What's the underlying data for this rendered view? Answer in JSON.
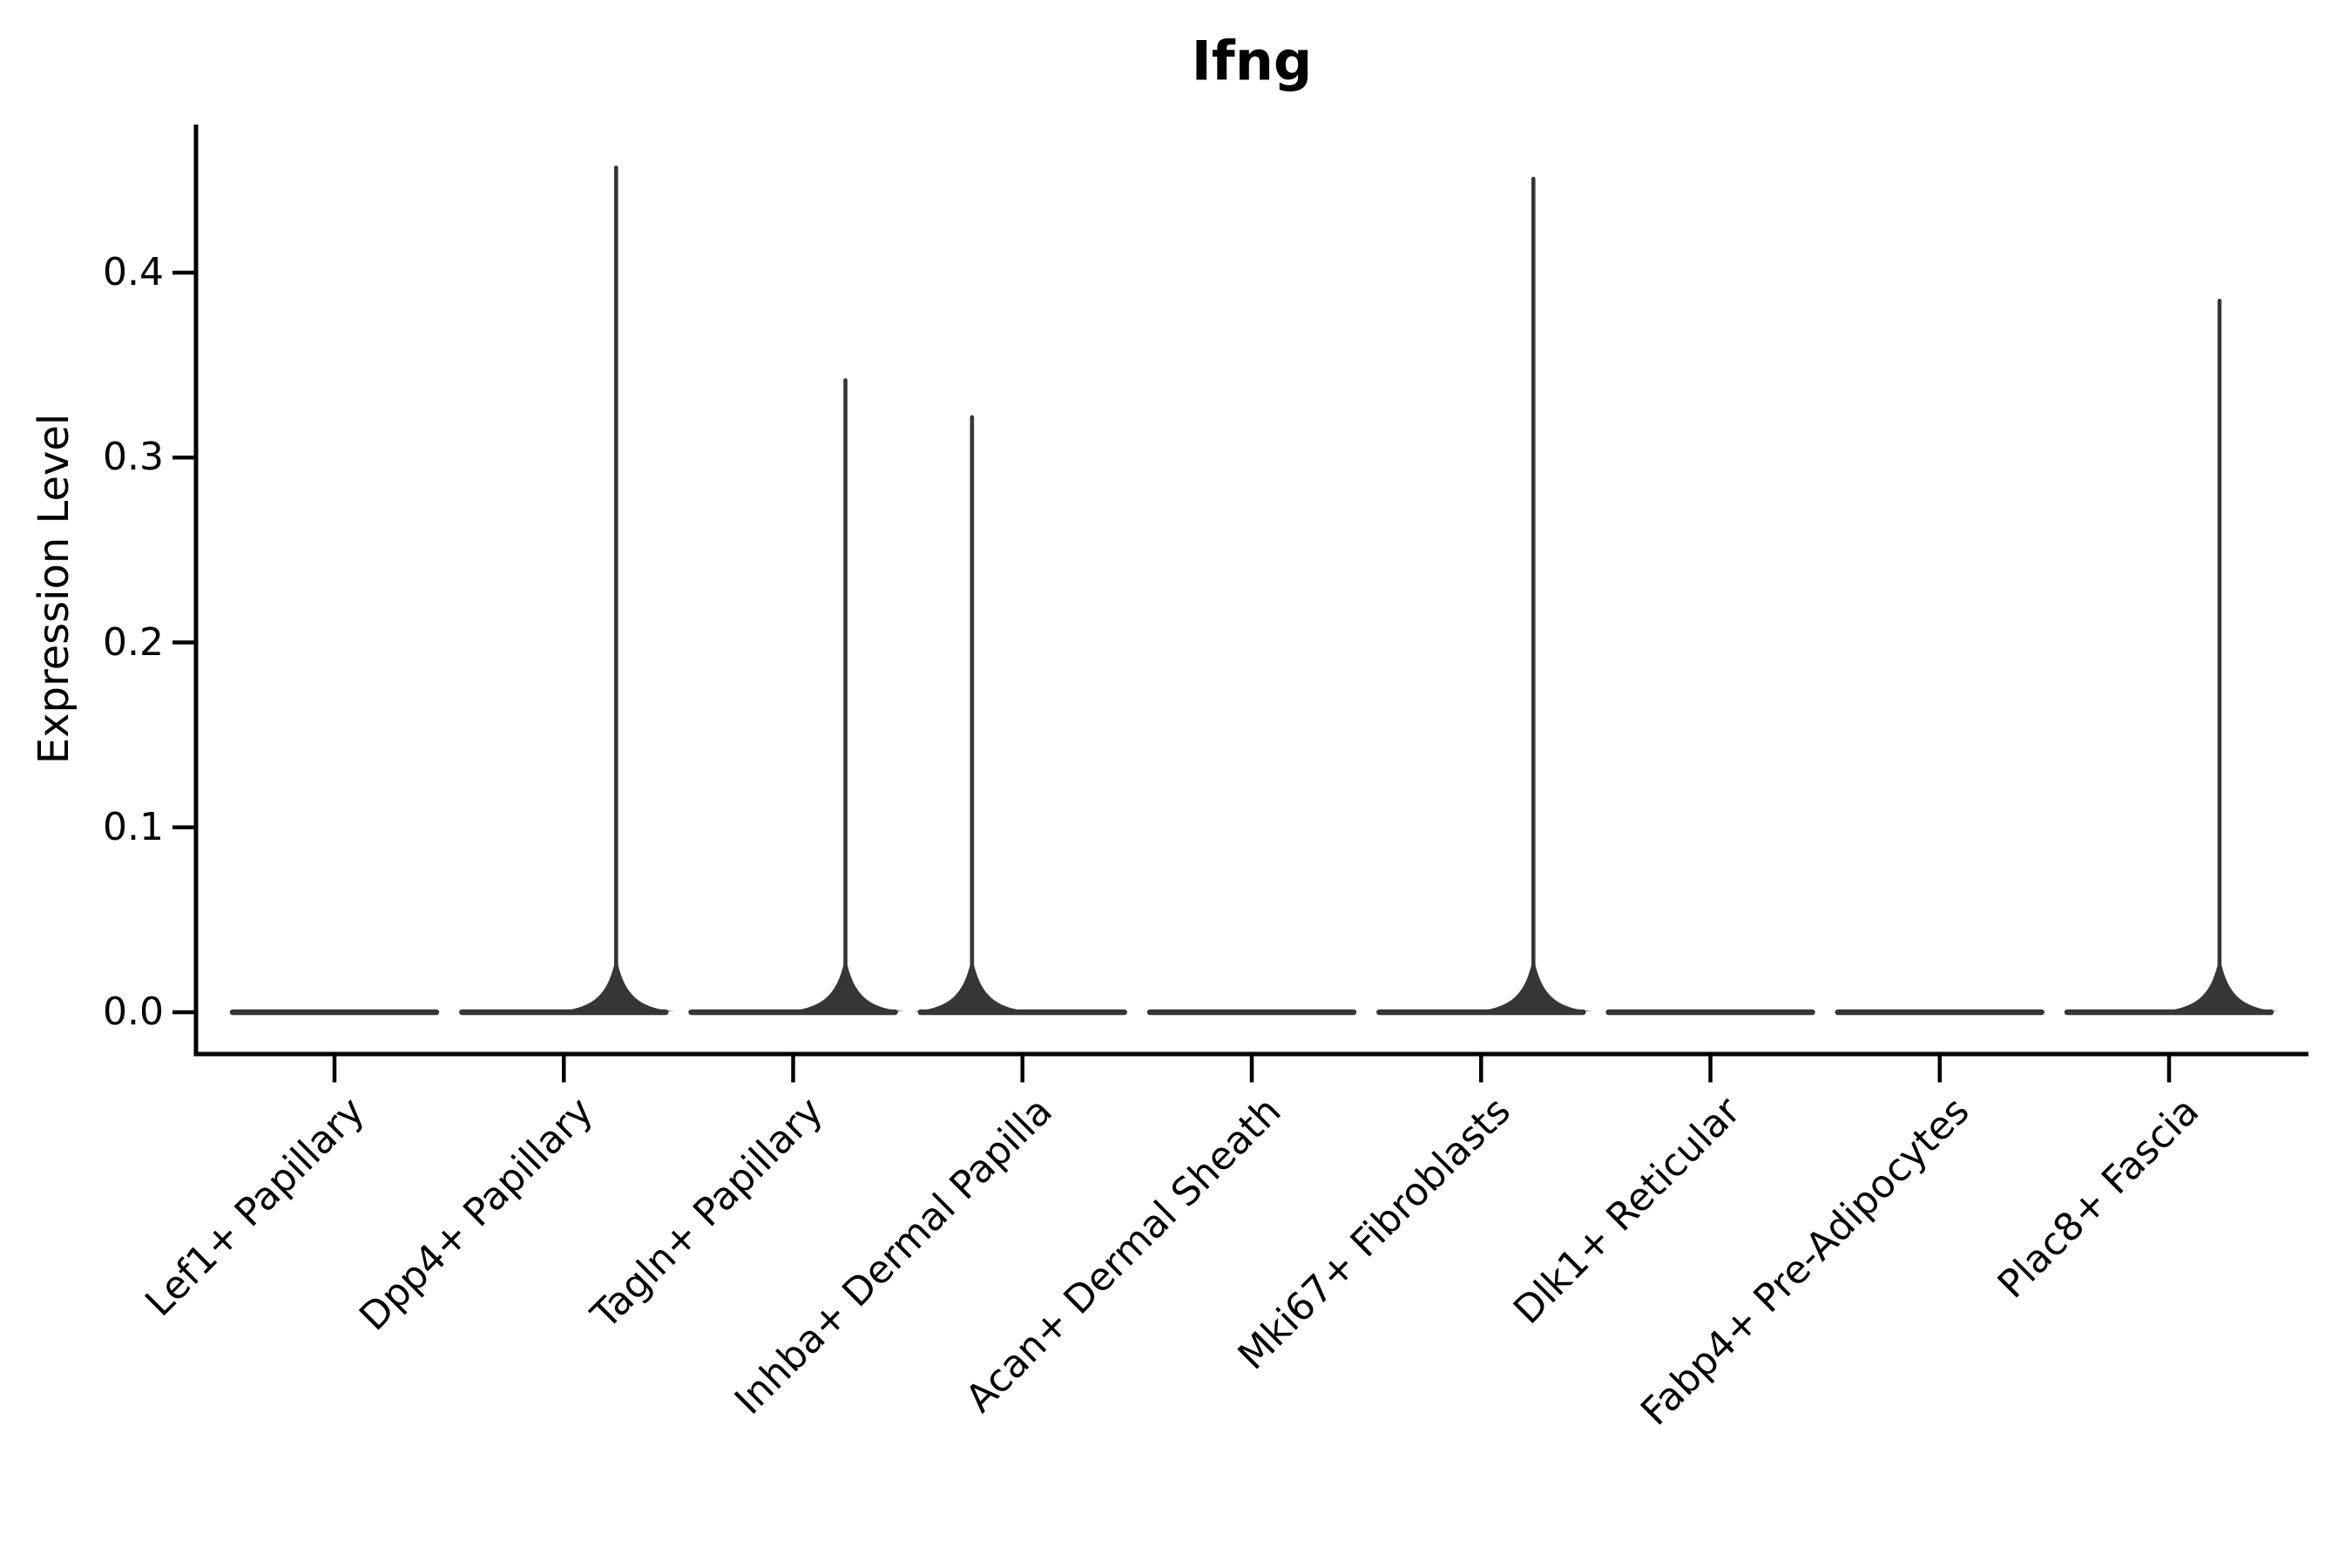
{
  "title": "Ifng",
  "colors": {
    "background": "#ffffff",
    "axis": "#000000",
    "violin": "#363636",
    "text": "#000000"
  },
  "chart_data": {
    "type": "violin",
    "title": "Ifng",
    "xlabel": "",
    "ylabel": "Expression Level",
    "ylim": [
      -0.02,
      0.48
    ],
    "y_ticks": [
      0.0,
      0.1,
      0.2,
      0.3,
      0.4
    ],
    "y_tick_labels": [
      "0.0",
      "0.1",
      "0.2",
      "0.3",
      "0.4"
    ],
    "grid": false,
    "legend": "none",
    "x_tick_rotation": 45,
    "categories": [
      "Lef1+ Papillary",
      "Dpp4+ Papillary",
      "Tagln+ Papillary",
      "Inhba+ Dermal Papilla",
      "Acan+ Dermal Sheath",
      "Mki67+ Fibroblasts",
      "Dlk1+ Reticular",
      "Fabp4+ Pre-Adipocytes",
      "Plac8+ Fascia"
    ],
    "series": [
      {
        "name": "Lef1+ Papillary",
        "baseline_value": 0.0,
        "spike_max": 0,
        "spike_offset_frac": 0
      },
      {
        "name": "Dpp4+ Papillary",
        "baseline_value": 0.0,
        "spike_max": 0.458,
        "spike_offset_frac": 0.228
      },
      {
        "name": "Tagln+ Papillary",
        "baseline_value": 0.0,
        "spike_max": 0.343,
        "spike_offset_frac": 0.228
      },
      {
        "name": "Inhba+ Dermal Papilla",
        "baseline_value": 0.0,
        "spike_max": 0.323,
        "spike_offset_frac": -0.22
      },
      {
        "name": "Acan+ Dermal Sheath",
        "baseline_value": 0.0,
        "spike_max": 0,
        "spike_offset_frac": 0
      },
      {
        "name": "Mki67+ Fibroblasts",
        "baseline_value": 0.0,
        "spike_max": 0.452,
        "spike_offset_frac": 0.228
      },
      {
        "name": "Dlk1+ Reticular",
        "baseline_value": 0.0,
        "spike_max": 0,
        "spike_offset_frac": 0
      },
      {
        "name": "Fabp4+ Pre-Adipocytes",
        "baseline_value": 0.0,
        "spike_max": 0,
        "spike_offset_frac": 0
      },
      {
        "name": "Plac8+ Fascia",
        "baseline_value": 0.0,
        "spike_max": 0.386,
        "spike_offset_frac": 0.22
      }
    ]
  }
}
